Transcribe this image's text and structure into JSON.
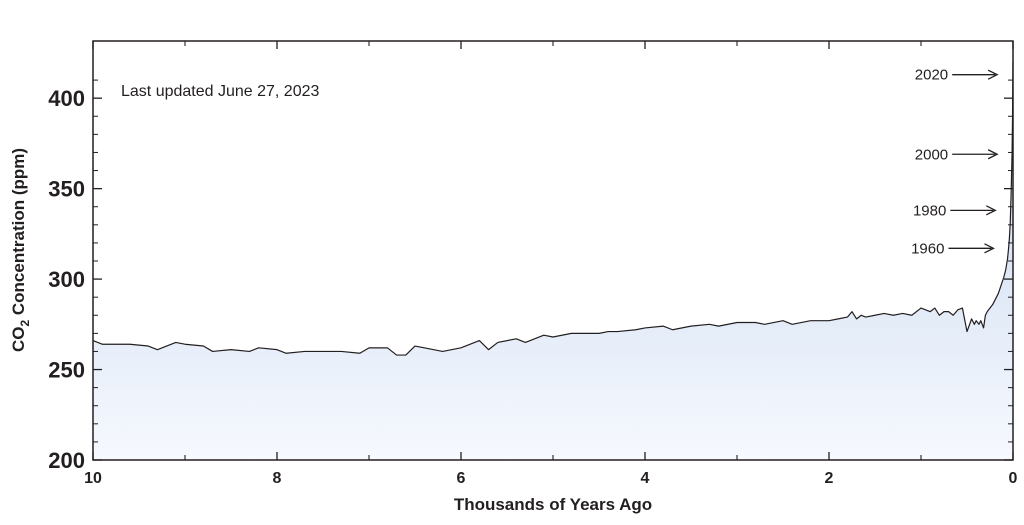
{
  "chart_data": {
    "type": "area",
    "xlabel": "Thousands of Years Ago",
    "ylabel_parts": {
      "pre": "CO",
      "sub": "2",
      "post": " Concentration (ppm)"
    },
    "xlim": [
      10,
      0
    ],
    "ylim": [
      200,
      420
    ],
    "grid": false,
    "note": "Last updated June 27, 2023",
    "colors": {
      "line": "#231f20",
      "fill_top": "#c3d4ee",
      "fill_bottom": "#f6f9fe",
      "axis": "#231f20"
    },
    "xticks": [
      {
        "value": 10,
        "label": "10"
      },
      {
        "value": 8,
        "label": "8"
      },
      {
        "value": 6,
        "label": "6"
      },
      {
        "value": 4,
        "label": "4"
      },
      {
        "value": 2,
        "label": "2"
      },
      {
        "value": 0,
        "label": "0"
      }
    ],
    "yticks": [
      {
        "value": 200,
        "label": "200"
      },
      {
        "value": 250,
        "label": "250"
      },
      {
        "value": 300,
        "label": "300"
      },
      {
        "value": 350,
        "label": "350"
      },
      {
        "value": 400,
        "label": "400"
      }
    ],
    "annotations": [
      {
        "label": "2020",
        "x": 0.02,
        "y": 413
      },
      {
        "label": "2000",
        "x": 0.02,
        "y": 369
      },
      {
        "label": "1980",
        "x": 0.04,
        "y": 338
      },
      {
        "label": "1960",
        "x": 0.06,
        "y": 317
      }
    ],
    "series": [
      {
        "x": [
          10.0,
          9.9,
          9.8,
          9.6,
          9.4,
          9.3,
          9.1,
          9.0,
          8.8,
          8.7,
          8.5,
          8.3,
          8.2,
          8.0,
          7.9,
          7.7,
          7.5,
          7.3,
          7.1,
          7.0,
          6.8,
          6.7,
          6.6,
          6.5,
          6.4,
          6.2,
          6.0,
          5.8,
          5.7,
          5.6,
          5.4,
          5.3,
          5.1,
          5.0,
          4.8,
          4.7,
          4.5,
          4.4,
          4.3,
          4.1,
          4.0,
          3.8,
          3.7,
          3.5,
          3.3,
          3.2,
          3.0,
          2.8,
          2.7,
          2.5,
          2.4,
          2.2,
          2.0,
          1.9,
          1.8,
          1.75,
          1.7,
          1.65,
          1.6,
          1.5,
          1.4,
          1.3,
          1.2,
          1.1,
          1.0,
          0.95,
          0.9,
          0.85,
          0.8,
          0.75,
          0.7,
          0.65,
          0.6,
          0.55,
          0.5,
          0.45,
          0.42,
          0.4,
          0.37,
          0.35,
          0.32,
          0.3,
          0.28,
          0.25,
          0.22,
          0.2,
          0.18,
          0.16,
          0.14,
          0.12,
          0.1,
          0.08,
          0.06,
          0.05,
          0.04,
          0.03,
          0.02,
          0.01,
          0.005,
          0.0
        ],
        "y": [
          266,
          264,
          264,
          264,
          263,
          261,
          265,
          264,
          263,
          260,
          261,
          260,
          262,
          261,
          259,
          260,
          260,
          260,
          259,
          262,
          262,
          258,
          258,
          263,
          262,
          260,
          262,
          266,
          261,
          265,
          267,
          265,
          269,
          268,
          270,
          270,
          270,
          271,
          271,
          272,
          273,
          274,
          272,
          274,
          275,
          274,
          276,
          276,
          275,
          277,
          275,
          277,
          277,
          278,
          279,
          282,
          278,
          280,
          279,
          280,
          281,
          280,
          281,
          280,
          284,
          283,
          282,
          284,
          280,
          282,
          282,
          280,
          283,
          284,
          271,
          278,
          275,
          277,
          275,
          277,
          273,
          280,
          282,
          284,
          286,
          288,
          290,
          292,
          295,
          298,
          301,
          305,
          311,
          316,
          322,
          331,
          348,
          370,
          390,
          420
        ]
      }
    ]
  }
}
